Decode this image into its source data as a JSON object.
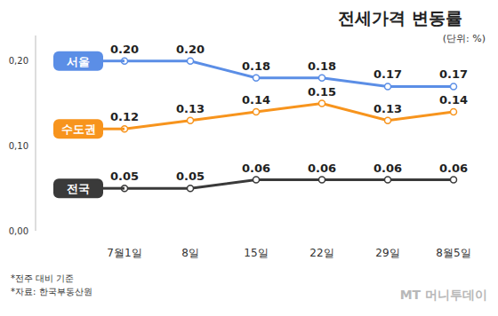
{
  "chart_data": {
    "type": "line",
    "title": "전세가격 변동률",
    "subtitle": "(단위: %)",
    "categories": [
      "7월1일",
      "8일",
      "15일",
      "22일",
      "29일",
      "8월5일"
    ],
    "series": [
      {
        "name": "서울",
        "color": "#5b8ee6",
        "marker": "circle",
        "line_style": "solid",
        "values": [
          0.2,
          0.2,
          0.18,
          0.18,
          0.17,
          0.17
        ],
        "value_labels": [
          "0.20",
          "0.20",
          "0.18",
          "0.18",
          "0.17",
          "0.17"
        ]
      },
      {
        "name": "수도권",
        "color": "#f7941d",
        "marker": "circle",
        "line_style": "solid",
        "values": [
          0.12,
          0.13,
          0.14,
          0.15,
          0.13,
          0.14
        ],
        "value_labels": [
          "0.12",
          "0.13",
          "0.14",
          "0.15",
          "0.13",
          "0.14"
        ]
      },
      {
        "name": "전국",
        "color": "#3a3a3a",
        "marker": "circle",
        "line_style": "solid",
        "values": [
          0.05,
          0.05,
          0.06,
          0.06,
          0.06,
          0.06
        ],
        "value_labels": [
          "0.05",
          "0.05",
          "0.06",
          "0.06",
          "0.06",
          "0.06"
        ]
      }
    ],
    "ylim": [
      0,
      0.23
    ],
    "yticks": [
      {
        "value": 0,
        "label": "0,00"
      },
      {
        "value": 0.1,
        "label": "0,10"
      },
      {
        "value": 0.2,
        "label": "0,20"
      }
    ],
    "grid": false,
    "data_labels": true,
    "notes": [
      "*전주 대비 기준",
      "*자료: 한국부동산원"
    ],
    "credit": "MT 머니투데이"
  }
}
